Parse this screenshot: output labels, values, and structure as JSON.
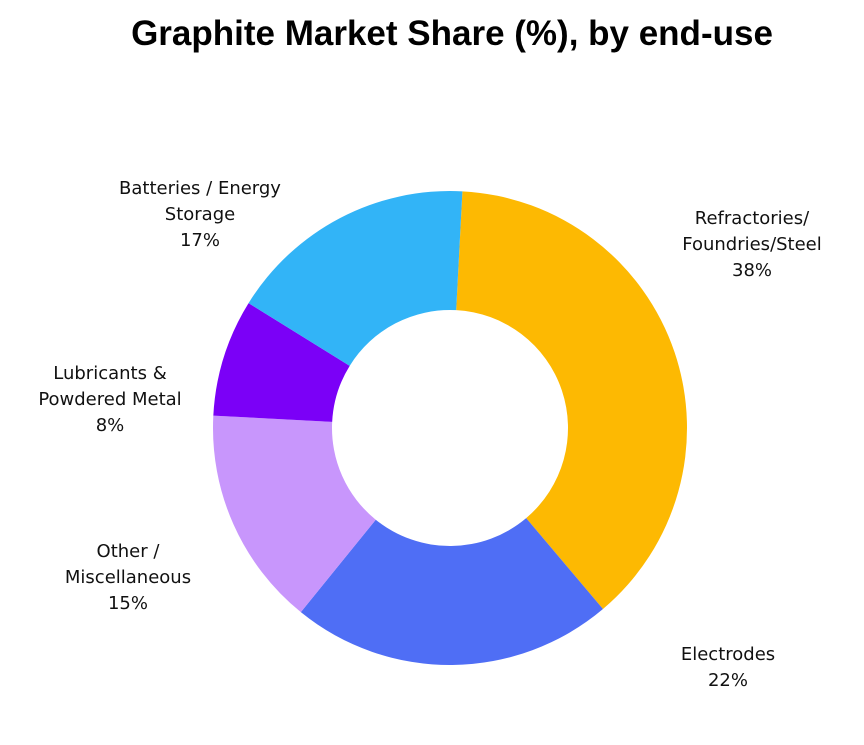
{
  "chart_data": {
    "type": "pie",
    "title": "Graphite Market Share (%), by end-use",
    "categories": [
      "Refractories/ Foundries/Steel",
      "Electrodes",
      "Other / Miscellaneous",
      "Lubricants & Powdered Metal",
      "Batteries / Energy Storage"
    ],
    "values": [
      38,
      22,
      15,
      8,
      17
    ],
    "value_labels": [
      "38%",
      "22%",
      "15%",
      "8%",
      "17%"
    ],
    "colors": [
      "#fdb902",
      "#4f6ef5",
      "#c896fc",
      "#7b00f7",
      "#32b4f7"
    ]
  }
}
